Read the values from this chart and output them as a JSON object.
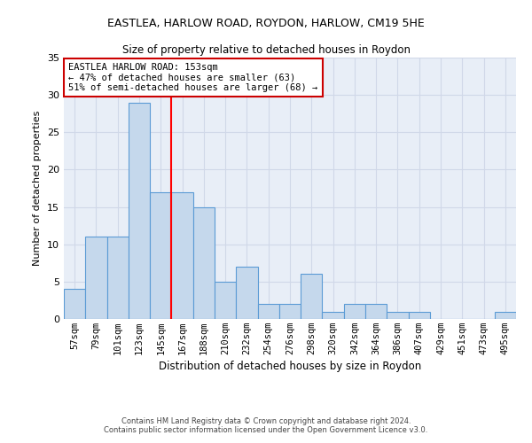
{
  "title1": "EASTLEA, HARLOW ROAD, ROYDON, HARLOW, CM19 5HE",
  "title2": "Size of property relative to detached houses in Roydon",
  "xlabel": "Distribution of detached houses by size in Roydon",
  "ylabel": "Number of detached properties",
  "footnote1": "Contains HM Land Registry data © Crown copyright and database right 2024.",
  "footnote2": "Contains public sector information licensed under the Open Government Licence v3.0.",
  "bar_labels": [
    "57sqm",
    "79sqm",
    "101sqm",
    "123sqm",
    "145sqm",
    "167sqm",
    "188sqm",
    "210sqm",
    "232sqm",
    "254sqm",
    "276sqm",
    "298sqm",
    "320sqm",
    "342sqm",
    "364sqm",
    "386sqm",
    "407sqm",
    "429sqm",
    "451sqm",
    "473sqm",
    "495sqm"
  ],
  "bar_values": [
    4,
    11,
    11,
    29,
    17,
    17,
    15,
    5,
    7,
    2,
    2,
    6,
    1,
    2,
    2,
    1,
    1,
    0,
    0,
    0,
    1
  ],
  "bar_color": "#c5d8ec",
  "bar_edge_color": "#5b9bd5",
  "red_line_index": 4,
  "ylim": [
    0,
    35
  ],
  "yticks": [
    0,
    5,
    10,
    15,
    20,
    25,
    30,
    35
  ],
  "annotation_title": "EASTLEA HARLOW ROAD: 153sqm",
  "annotation_line2": "← 47% of detached houses are smaller (63)",
  "annotation_line3": "51% of semi-detached houses are larger (68) →",
  "annotation_box_color": "#ffffff",
  "annotation_border_color": "#cc0000",
  "grid_color": "#d0d8e8",
  "bg_color": "#e8eef7",
  "title1_fontsize": 9,
  "title2_fontsize": 8.5
}
